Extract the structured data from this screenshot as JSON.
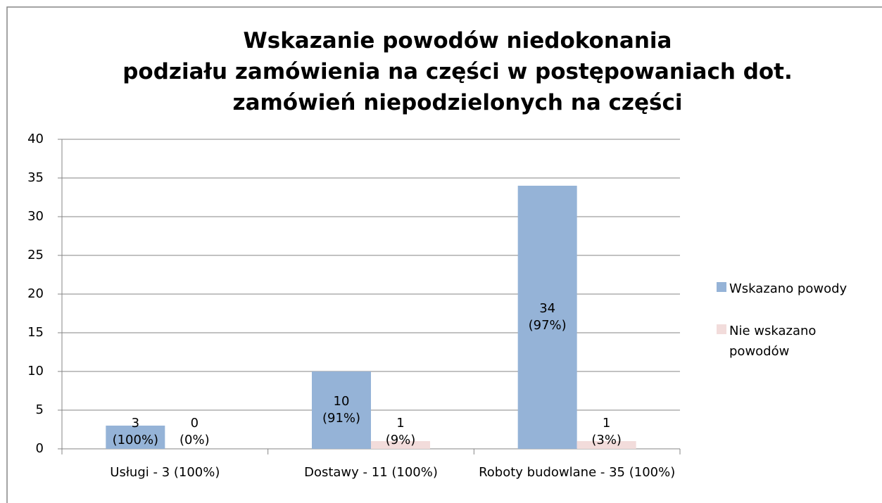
{
  "chart_data": {
    "type": "bar",
    "title": "Wskazanie powodów niedokonania\npodziału zamówienia na części w postępowaniach dot.\nzamówień niepodzielonych na części",
    "categories": [
      "Usługi - 3 (100%)",
      "Dostawy - 11 (100%)",
      "Roboty budowlane - 35 (100%)"
    ],
    "series": [
      {
        "name": "Wskazano powody",
        "color": "#95b3d7",
        "values": [
          3,
          10,
          34
        ],
        "value_labels": [
          "3\n(100%)",
          "10\n(91%)",
          "34\n(97%)"
        ]
      },
      {
        "name": "Nie wskazano powodów",
        "color": "#f2dcdb",
        "values": [
          0,
          1,
          1
        ],
        "value_labels": [
          "0\n(0%)",
          "1\n(9%)",
          "1\n(3%)"
        ]
      }
    ],
    "ylim": [
      0,
      40
    ],
    "yticks": [
      0,
      5,
      10,
      15,
      20,
      25,
      30,
      35,
      40
    ],
    "grid": true,
    "legend": "right"
  }
}
